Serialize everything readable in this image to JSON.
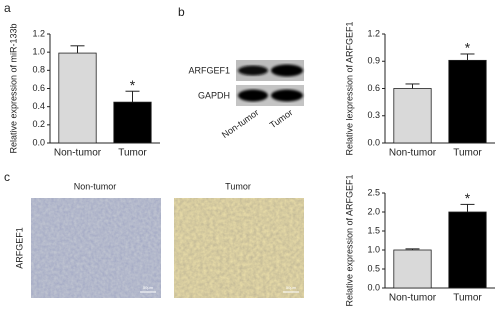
{
  "panels": {
    "a": "a",
    "b": "b",
    "c": "c"
  },
  "blot": {
    "rows": [
      "ARFGEF1",
      "GAPDH"
    ],
    "lanes": [
      "Non-tumor",
      "Tumor"
    ]
  },
  "ihc": {
    "columns": [
      "Non-tumor",
      "Tumor"
    ],
    "row_label": "ARFGEF1",
    "scale_bar": "50μm"
  },
  "chart_data": [
    {
      "type": "bar",
      "y_label": "Relative expression of miR-133b",
      "categories": [
        "Non-tumor",
        "Tumor"
      ],
      "values": [
        0.99,
        0.45
      ],
      "errors": [
        0.08,
        0.12
      ],
      "colors": [
        "#d9d9d9",
        "#000000"
      ],
      "annotation": "*",
      "ylim": [
        0,
        1.2
      ],
      "yticks": [
        {
          "value": 0,
          "label": "0.0"
        },
        0.2,
        0.4,
        0.6,
        0.8,
        {
          "value": 1,
          "label": "1.0"
        },
        1.2
      ]
    },
    {
      "type": "bar",
      "y_label": "Relative lexpression of ARFGEF1",
      "categories": [
        "Non-tumor",
        "Tumor"
      ],
      "values": [
        0.6,
        0.91
      ],
      "errors": [
        0.05,
        0.07
      ],
      "colors": [
        "#d9d9d9",
        "#000000"
      ],
      "annotation": "*",
      "ylim": [
        0,
        1.2
      ],
      "yticks": [
        {
          "value": 0,
          "label": "0.0"
        },
        0.3,
        0.6,
        0.9,
        1.2
      ]
    },
    {
      "type": "bar",
      "y_label": "Relative expression of ARFGEF1",
      "categories": [
        "Non-tumor",
        "Tumor"
      ],
      "values": [
        1.0,
        2.0
      ],
      "errors": [
        0.03,
        0.2
      ],
      "colors": [
        "#d9d9d9",
        "#000000"
      ],
      "annotation": "*",
      "ylim": [
        0,
        2.5
      ],
      "yticks": [
        {
          "value": 0,
          "label": "0.0"
        },
        0.5,
        {
          "value": 1,
          "label": "1.0"
        },
        1.5,
        {
          "value": 2,
          "label": "2.0"
        },
        2.5
      ]
    }
  ]
}
